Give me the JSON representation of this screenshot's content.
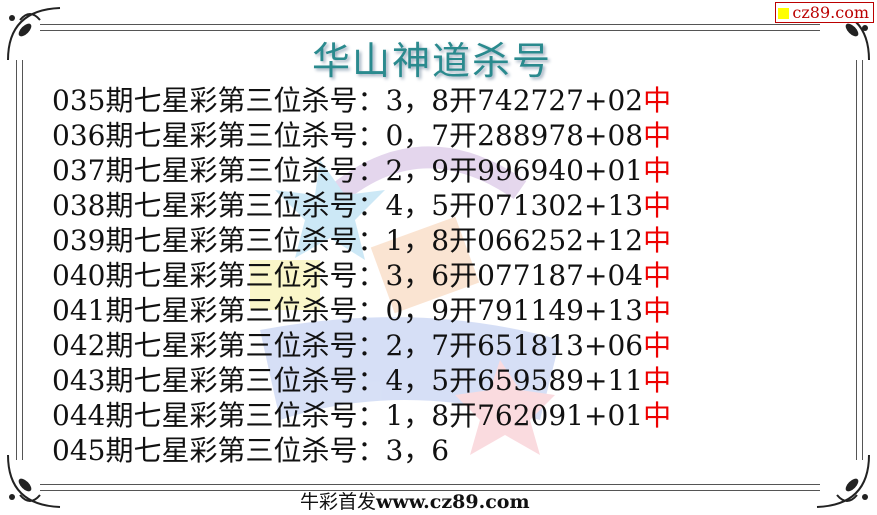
{
  "title": "华山神道杀号",
  "badge": "cz89.com",
  "rows": [
    {
      "period": "035期七星彩第三位杀号：",
      "kill": "3，8",
      "open": "开742727+02",
      "hit": "中"
    },
    {
      "period": "036期七星彩第三位杀号：",
      "kill": "0，7",
      "open": "开288978+08",
      "hit": "中"
    },
    {
      "period": "037期七星彩第三位杀号：",
      "kill": "2，9",
      "open": "开996940+01",
      "hit": "中"
    },
    {
      "period": "038期七星彩第三位杀号：",
      "kill": "4，5",
      "open": "开071302+13",
      "hit": "中"
    },
    {
      "period": "039期七星彩第三位杀号：",
      "kill": "1，8",
      "open": "开066252+12",
      "hit": "中"
    },
    {
      "period": "040期七星彩第三位杀号：",
      "kill": "3，6",
      "open": "开077187+04",
      "hit": "中"
    },
    {
      "period": "041期七星彩第三位杀号：",
      "kill": "0，9",
      "open": "开791149+13",
      "hit": "中"
    },
    {
      "period": "042期七星彩第三位杀号：",
      "kill": "2，7",
      "open": "开651813+06",
      "hit": "中"
    },
    {
      "period": "043期七星彩第三位杀号：",
      "kill": "4，5",
      "open": "开659589+11",
      "hit": "中"
    },
    {
      "period": "044期七星彩第三位杀号：",
      "kill": "1，8",
      "open": "开762091+01",
      "hit": "中"
    },
    {
      "period": "045期七星彩第三位杀号：",
      "kill": "3，6",
      "open": "",
      "hit": ""
    }
  ],
  "footer": {
    "prefix": "牛彩首发",
    "url": "www.cz89.com"
  },
  "colors": {
    "title": "#2a8a8e",
    "hit": "#ee0000",
    "badge": "#bb0000"
  }
}
